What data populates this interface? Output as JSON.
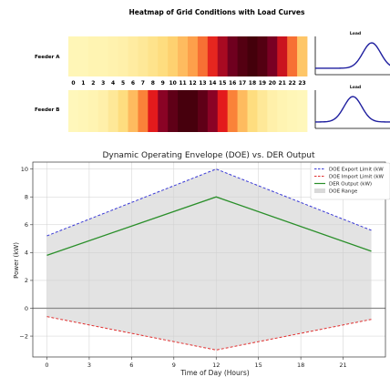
{
  "chart_data": [
    {
      "type": "heatmap",
      "title": "Heatmap of Grid Conditions with Load Curves",
      "rows": [
        "Feeder A",
        "Feeder B"
      ],
      "hours": [
        "0",
        "1",
        "2",
        "3",
        "4",
        "5",
        "6",
        "7",
        "8",
        "9",
        "10",
        "11",
        "12",
        "13",
        "14",
        "15",
        "16",
        "17",
        "18",
        "19",
        "20",
        "21",
        "22",
        "23"
      ],
      "values": [
        [
          0.05,
          0.05,
          0.06,
          0.06,
          0.07,
          0.08,
          0.1,
          0.12,
          0.15,
          0.18,
          0.22,
          0.28,
          0.35,
          0.45,
          0.58,
          0.72,
          0.85,
          0.93,
          0.98,
          0.93,
          0.82,
          0.65,
          0.45,
          0.25
        ],
        [
          0.04,
          0.05,
          0.06,
          0.08,
          0.12,
          0.18,
          0.28,
          0.42,
          0.6,
          0.78,
          0.9,
          0.97,
          0.97,
          0.9,
          0.78,
          0.6,
          0.42,
          0.28,
          0.18,
          0.12,
          0.08,
          0.06,
          0.05,
          0.04
        ]
      ],
      "colormap": [
        "#ffffcc",
        "#fed976",
        "#fd8d3c",
        "#e31a1c",
        "#800026",
        "#3d0008"
      ],
      "insets": [
        {
          "title": "Load",
          "series_color": "#1f1f9f",
          "peak_position": 0.72
        },
        {
          "title": "Load",
          "series_color": "#1f1f9f",
          "peak_position": 0.48
        }
      ]
    },
    {
      "type": "line",
      "title": "Dynamic Operating Envelope (DOE) vs. DER Output",
      "xlabel": "Time of Day (Hours)",
      "ylabel": "Power (kW)",
      "xlim": [
        -1,
        24
      ],
      "ylim": [
        -3.5,
        10.5
      ],
      "xticks": [
        0,
        3,
        6,
        9,
        12,
        15,
        18,
        21
      ],
      "yticks": [
        -2,
        0,
        2,
        4,
        6,
        8,
        10
      ],
      "grid": true,
      "legend_position": "top-right",
      "x": [
        0,
        12,
        23
      ],
      "series": [
        {
          "name": "DOE Export Limit (kW",
          "values": [
            5.2,
            10.0,
            5.6
          ],
          "color": "#3a3ad6",
          "style": "dashed"
        },
        {
          "name": "DOE Import Limit (kW",
          "values": [
            -0.6,
            -3.0,
            -0.8
          ],
          "color": "#e03030",
          "style": "dashed"
        },
        {
          "name": "DER Output (kW)",
          "values": [
            3.8,
            8.0,
            4.1
          ],
          "color": "#2a8f2a",
          "style": "solid"
        }
      ],
      "range": {
        "name": "DOE Range",
        "color": "#d9d9d9"
      },
      "zero_line_color": "#888888"
    }
  ]
}
